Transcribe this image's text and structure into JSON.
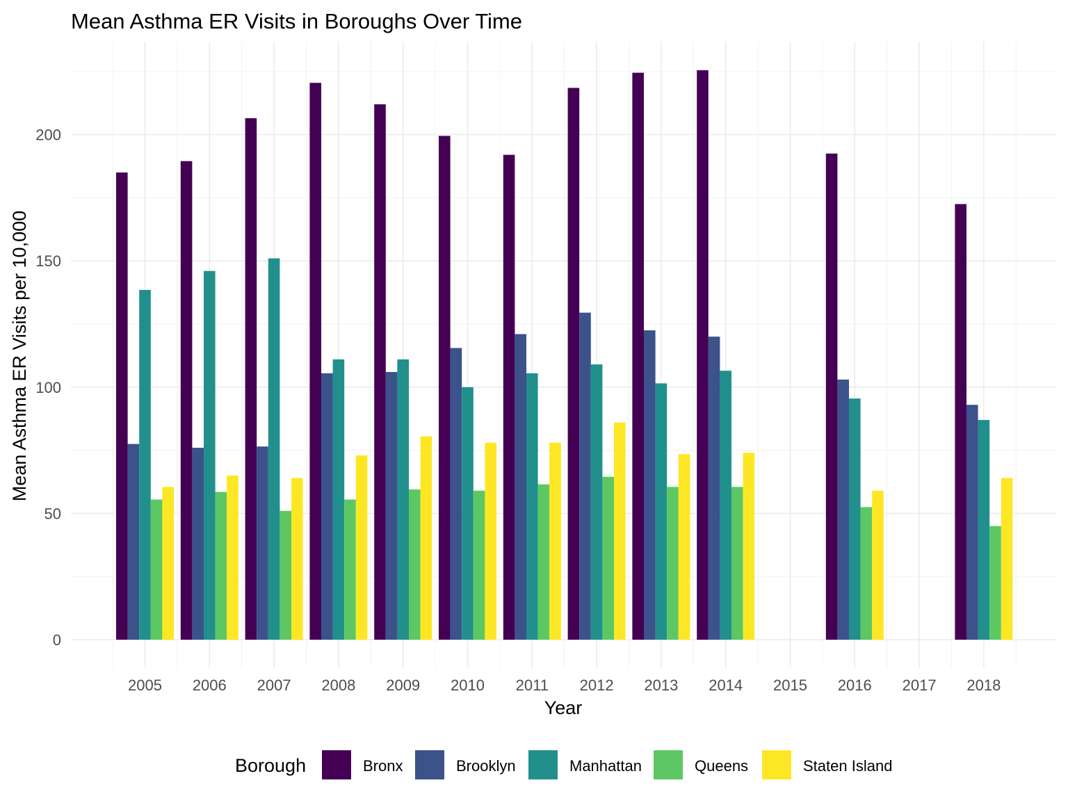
{
  "chart_data": {
    "type": "bar",
    "title": "Mean Asthma ER Visits in Boroughs Over Time",
    "xlabel": "Year",
    "ylabel": "Mean Asthma ER Visits per 10,000",
    "categories": [
      "2005",
      "2006",
      "2007",
      "2008",
      "2009",
      "2010",
      "2011",
      "2012",
      "2013",
      "2014",
      "2015",
      "2016",
      "2017",
      "2018"
    ],
    "ylim": [
      -10,
      236
    ],
    "yticks": [
      0,
      50,
      100,
      150,
      200
    ],
    "ytick_labels": [
      "0",
      "50",
      "100",
      "150",
      "200"
    ],
    "grid": true,
    "legend": {
      "title": "Borough",
      "position": "bottom"
    },
    "series": [
      {
        "name": "Bronx",
        "color": "#440154",
        "values": [
          185,
          189.5,
          206.5,
          220.5,
          212,
          199.5,
          192,
          218.5,
          224.5,
          225.5,
          null,
          192.5,
          null,
          172.5
        ]
      },
      {
        "name": "Brooklyn",
        "color": "#3B528B",
        "values": [
          77.5,
          76,
          76.5,
          105.5,
          106,
          115.5,
          121,
          129.5,
          122.5,
          120,
          null,
          103,
          null,
          93
        ]
      },
      {
        "name": "Manhattan",
        "color": "#21908C",
        "values": [
          138.5,
          146,
          151,
          111,
          111,
          100,
          105.5,
          109,
          101.5,
          106.5,
          null,
          95.5,
          null,
          87
        ]
      },
      {
        "name": "Queens",
        "color": "#5DC863",
        "values": [
          55.5,
          58.5,
          51,
          55.5,
          59.5,
          59,
          61.5,
          64.5,
          60.5,
          60.5,
          null,
          52.5,
          null,
          45
        ]
      },
      {
        "name": "Staten Island",
        "color": "#FDE725",
        "values": [
          60.5,
          65,
          64,
          73,
          80.5,
          78,
          78,
          86,
          73.5,
          74,
          null,
          59,
          null,
          64
        ]
      }
    ]
  }
}
